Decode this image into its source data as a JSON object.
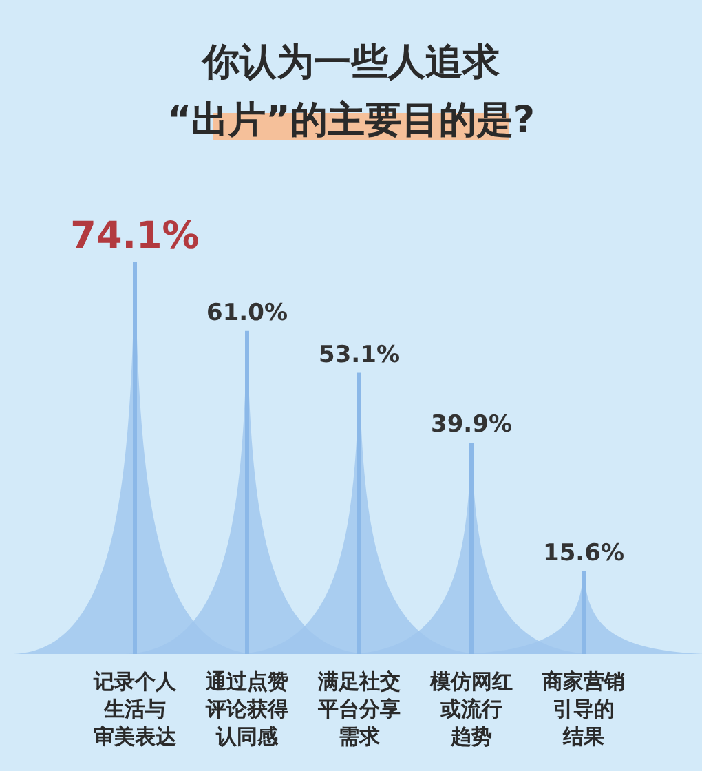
{
  "chart_data": {
    "type": "bar",
    "title": "你认为一些人追求\n“出片”的主要目的是?",
    "categories": [
      "记录个人生活与审美表达",
      "通过点赞评论获得认同感",
      "满足社交平台分享需求",
      "模仿网红或流行趋势",
      "商家营销引导的结果"
    ],
    "values": [
      74.1,
      61.0,
      53.1,
      39.9,
      15.6
    ],
    "value_labels": [
      "74.1%",
      "61.0%",
      "53.1%",
      "39.9%",
      "15.6%"
    ],
    "colors": [
      "#8bb8e8",
      "#8bb8e8",
      "#8bb8e8",
      "#8bb8e8",
      "#8bb8e8"
    ]
  }
}
